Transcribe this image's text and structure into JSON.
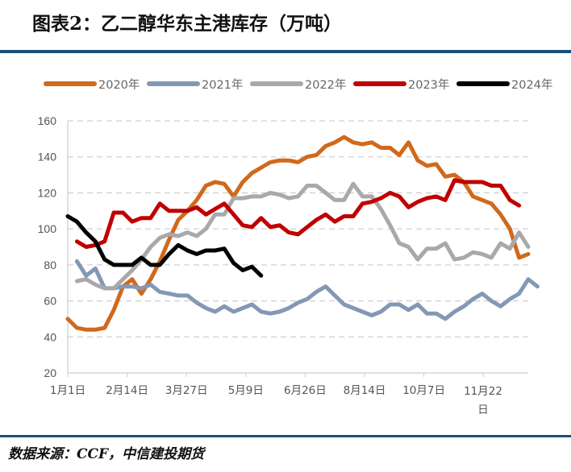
{
  "title": "图表2：乙二醇华东主港库存（万吨）",
  "source": "数据来源：CCF，中信建投期货",
  "chart_data": {
    "type": "line",
    "title": "图表2：乙二醇华东主港库存（万吨）",
    "ylim": [
      20,
      160
    ],
    "yticks": [
      20,
      40,
      60,
      80,
      100,
      120,
      140,
      160
    ],
    "xtick_labels": [
      "1月1日",
      "2月14日",
      "3月27日",
      "5月9日",
      "6月26日",
      "8月14日",
      "10月7日",
      "11月22日"
    ],
    "grid": true,
    "legend": "top",
    "series": [
      {
        "name": "2020年",
        "color": "#d0691c",
        "values": [
          50,
          45,
          44,
          44,
          45,
          55,
          68,
          72,
          64,
          72,
          82,
          94,
          105,
          110,
          116,
          124,
          126,
          125,
          118,
          126,
          131,
          134,
          137,
          138,
          138,
          137,
          140,
          141,
          146,
          148,
          151,
          148,
          147,
          148,
          145,
          145,
          141,
          148,
          138,
          135,
          136,
          129,
          130,
          126,
          118,
          116,
          114,
          108,
          100,
          84,
          86
        ]
      },
      {
        "name": "2021年",
        "color": "#8398b5",
        "values": [
          null,
          82,
          74,
          78,
          67,
          67,
          68,
          68,
          67,
          69,
          65,
          64,
          63,
          63,
          59,
          56,
          54,
          57,
          54,
          56,
          58,
          54,
          53,
          54,
          56,
          59,
          61,
          65,
          68,
          63,
          58,
          56,
          54,
          52,
          54,
          58,
          58,
          55,
          58,
          53,
          53,
          50,
          54,
          57,
          61,
          64,
          60,
          57,
          61,
          64,
          72,
          68
        ]
      },
      {
        "name": "2022年",
        "color": "#a9a9a9",
        "values": [
          null,
          71,
          72,
          69,
          67,
          67,
          72,
          77,
          83,
          90,
          95,
          97,
          96,
          98,
          96,
          100,
          108,
          108,
          117,
          117,
          118,
          118,
          120,
          119,
          117,
          118,
          124,
          124,
          120,
          116,
          116,
          125,
          118,
          118,
          111,
          102,
          92,
          90,
          83,
          89,
          89,
          92,
          83,
          84,
          87,
          86,
          84,
          92,
          89,
          98,
          90
        ]
      },
      {
        "name": "2023年",
        "color": "#c00000",
        "values": [
          null,
          93,
          90,
          91,
          93,
          109,
          109,
          104,
          106,
          106,
          114,
          110,
          110,
          110,
          112,
          108,
          111,
          114,
          108,
          102,
          101,
          106,
          101,
          102,
          98,
          97,
          101,
          105,
          108,
          104,
          107,
          107,
          114,
          115,
          117,
          120,
          118,
          112,
          115,
          117,
          118,
          116,
          127,
          126,
          126,
          126,
          124,
          124,
          116,
          113
        ]
      },
      {
        "name": "2024年",
        "color": "#000000",
        "values": [
          107,
          104,
          98,
          93,
          83,
          80,
          80,
          80,
          84,
          80,
          80,
          86,
          91,
          88,
          86,
          88,
          88,
          89,
          81,
          77,
          79,
          74
        ]
      }
    ]
  }
}
